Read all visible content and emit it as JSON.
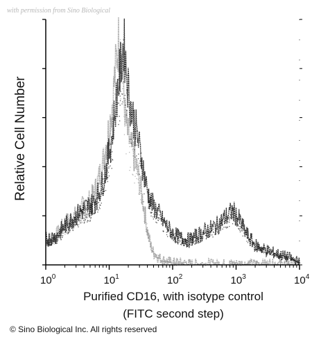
{
  "watermark": "with permission from Sino Biological",
  "copyright": "© Sino Biological Inc. All rights reserved",
  "colors": {
    "gray_histogram": "#9a9a9a",
    "black_histogram": "#1a1a1a",
    "axis": "#000000"
  },
  "chart_data": {
    "type": "area",
    "title": "",
    "xlabel": "Purified CD16, with isotype control",
    "xlabel_line2": "(FITC second step)",
    "ylabel": "Relative Cell Number",
    "xscale": "log",
    "xlim": [
      1,
      10000
    ],
    "ylim": [
      0,
      100
    ],
    "x_ticks": [
      {
        "value": 1,
        "base": "10",
        "exp": "0"
      },
      {
        "value": 10,
        "base": "10",
        "exp": "1"
      },
      {
        "value": 100,
        "base": "10",
        "exp": "2"
      },
      {
        "value": 1000,
        "base": "10",
        "exp": "3"
      },
      {
        "value": 10000,
        "base": "10",
        "exp": "4"
      }
    ],
    "grid": false,
    "legend": "none",
    "series": [
      {
        "color": "gray",
        "x": [
          1,
          1.5,
          2,
          3,
          4,
          5,
          6,
          7,
          8,
          9,
          10,
          11,
          12,
          13,
          14,
          15,
          16,
          17,
          18,
          20,
          22,
          25,
          28,
          32,
          36,
          40,
          45,
          50,
          60,
          70,
          85,
          100,
          130,
          180,
          300,
          600,
          1000,
          3000,
          10000
        ],
        "y": [
          10,
          12,
          17,
          20,
          24,
          26,
          30,
          36,
          42,
          50,
          56,
          64,
          74,
          84,
          91,
          88,
          80,
          70,
          60,
          52,
          48,
          44,
          38,
          30,
          22,
          14,
          8,
          5,
          3,
          2,
          1.5,
          1,
          1,
          0.5,
          0.5,
          0.5,
          0.5,
          0.5,
          0.5
        ]
      },
      {
        "color": "black",
        "x": [
          1,
          1.5,
          2,
          3,
          4,
          5,
          6,
          7,
          8,
          9,
          10,
          11,
          12,
          13,
          14,
          15,
          16,
          17,
          18,
          20,
          22,
          25,
          28,
          32,
          36,
          40,
          45,
          50,
          60,
          70,
          85,
          100,
          130,
          180,
          250,
          350,
          500,
          650,
          800,
          900,
          1000,
          1150,
          1300,
          1600,
          2000,
          3000,
          5000,
          7000,
          10000
        ],
        "y": [
          10,
          12,
          16,
          20,
          23,
          24,
          26,
          30,
          34,
          40,
          46,
          52,
          60,
          68,
          74,
          80,
          86,
          90,
          84,
          72,
          64,
          58,
          52,
          44,
          36,
          30,
          26,
          24,
          21,
          18,
          15,
          13,
          11,
          10,
          12,
          14,
          16,
          19,
          21,
          22,
          20,
          18,
          15,
          11,
          8,
          6,
          4,
          3,
          1
        ]
      }
    ]
  }
}
